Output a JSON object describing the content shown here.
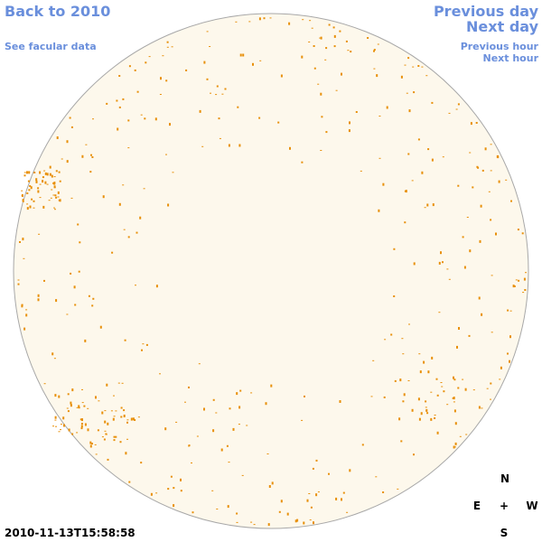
{
  "nav": {
    "back": "Back to 2010",
    "facular": "See facular data",
    "previous_day": "Previous day",
    "next_day": "Next day",
    "previous_hour": "Previous hour",
    "next_hour": "Next hour"
  },
  "compass": {
    "north": "N",
    "east": "E",
    "center": "+",
    "west": "W",
    "south": "S"
  },
  "timestamp": "2010-11-13T15:58:58"
}
